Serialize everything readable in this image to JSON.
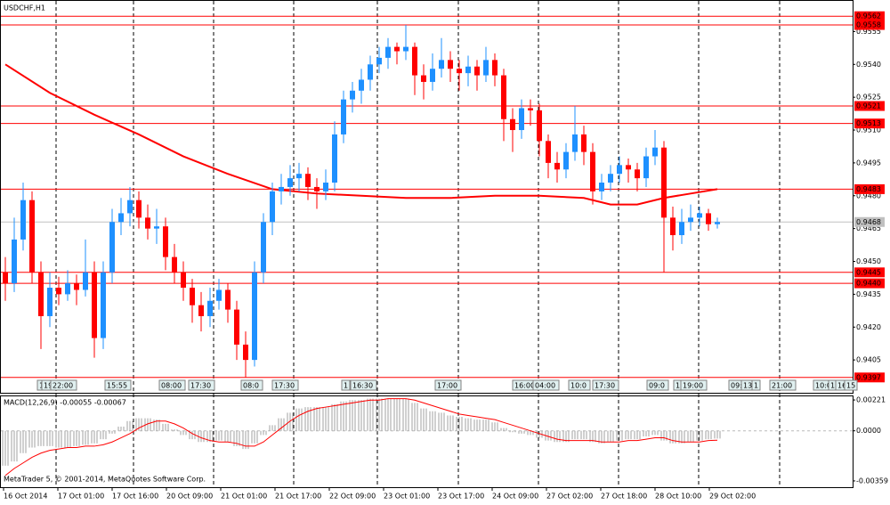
{
  "chart_data": [
    {
      "type": "candlestick",
      "title": "USDCHF,H1",
      "up_color": "#1e90ff",
      "down_color": "#ff0000",
      "ylim": [
        0.939,
        0.9569
      ],
      "yticks": [
        {
          "value": 0.9555,
          "label": "0.9555"
        },
        {
          "value": 0.954,
          "label": "0.9540"
        },
        {
          "value": 0.9525,
          "label": "0.9525"
        },
        {
          "value": 0.951,
          "label": "0.9510"
        },
        {
          "value": 0.9495,
          "label": "0.9495"
        },
        {
          "value": 0.948,
          "label": "0.9480"
        },
        {
          "value": 0.9465,
          "label": "0.9465"
        },
        {
          "value": 0.945,
          "label": "0.9450"
        },
        {
          "value": 0.9435,
          "label": "0.9435"
        },
        {
          "value": 0.942,
          "label": "0.9420"
        },
        {
          "value": 0.9405,
          "label": "0.9405"
        }
      ],
      "levels": [
        {
          "value": 0.9562,
          "label": "0.9562"
        },
        {
          "value": 0.9558,
          "label": "0.9558"
        },
        {
          "value": 0.9521,
          "label": "0.9521"
        },
        {
          "value": 0.9513,
          "label": "0.9513"
        },
        {
          "value": 0.9483,
          "label": "0.9483"
        },
        {
          "value": 0.9445,
          "label": "0.9445"
        },
        {
          "value": 0.944,
          "label": "0.9440"
        },
        {
          "value": 0.9397,
          "label": "0.9397"
        }
      ],
      "level_color": "#ff0000",
      "current": {
        "value": 0.9468,
        "label": "0.9468"
      },
      "current_color": "#c0c0c0",
      "ohlc": [
        [
          0.9445,
          0.9452,
          0.9432,
          0.944
        ],
        [
          0.944,
          0.947,
          0.9436,
          0.946
        ],
        [
          0.946,
          0.9486,
          0.9455,
          0.9478
        ],
        [
          0.9478,
          0.9482,
          0.944,
          0.9445
        ],
        [
          0.9445,
          0.945,
          0.941,
          0.9425
        ],
        [
          0.9425,
          0.9445,
          0.942,
          0.9438
        ],
        [
          0.9438,
          0.9443,
          0.943,
          0.9435
        ],
        [
          0.9435,
          0.9446,
          0.9432,
          0.944
        ],
        [
          0.944,
          0.9444,
          0.943,
          0.9437
        ],
        [
          0.9437,
          0.946,
          0.9434,
          0.9445
        ],
        [
          0.9445,
          0.945,
          0.9406,
          0.9415
        ],
        [
          0.9415,
          0.945,
          0.941,
          0.9445
        ],
        [
          0.9445,
          0.9474,
          0.944,
          0.9468
        ],
        [
          0.9468,
          0.9479,
          0.9462,
          0.9472
        ],
        [
          0.9472,
          0.9484,
          0.9466,
          0.9478
        ],
        [
          0.9478,
          0.9482,
          0.9465,
          0.947
        ],
        [
          0.947,
          0.9476,
          0.946,
          0.9465
        ],
        [
          0.9465,
          0.9474,
          0.9458,
          0.9466
        ],
        [
          0.9466,
          0.947,
          0.9446,
          0.9452
        ],
        [
          0.9452,
          0.9458,
          0.944,
          0.9445
        ],
        [
          0.9445,
          0.945,
          0.9432,
          0.9438
        ],
        [
          0.9438,
          0.9442,
          0.9422,
          0.943
        ],
        [
          0.943,
          0.9436,
          0.9418,
          0.9425
        ],
        [
          0.9425,
          0.9438,
          0.942,
          0.9432
        ],
        [
          0.9432,
          0.9442,
          0.9428,
          0.9437
        ],
        [
          0.9437,
          0.944,
          0.9422,
          0.9428
        ],
        [
          0.9428,
          0.9432,
          0.9405,
          0.9412
        ],
        [
          0.9412,
          0.9418,
          0.9397,
          0.9405
        ],
        [
          0.9405,
          0.945,
          0.9402,
          0.9445
        ],
        [
          0.9445,
          0.9472,
          0.944,
          0.9468
        ],
        [
          0.9468,
          0.9486,
          0.9462,
          0.9482
        ],
        [
          0.9482,
          0.949,
          0.9476,
          0.9484
        ],
        [
          0.9484,
          0.9494,
          0.948,
          0.9488
        ],
        [
          0.9488,
          0.9495,
          0.9482,
          0.949
        ],
        [
          0.949,
          0.9493,
          0.9478,
          0.9484
        ],
        [
          0.9484,
          0.9488,
          0.9474,
          0.9482
        ],
        [
          0.9482,
          0.9492,
          0.9478,
          0.9486
        ],
        [
          0.9486,
          0.9514,
          0.9482,
          0.9508
        ],
        [
          0.9508,
          0.9528,
          0.9504,
          0.9524
        ],
        [
          0.9524,
          0.9532,
          0.9518,
          0.9528
        ],
        [
          0.9528,
          0.9538,
          0.9522,
          0.9533
        ],
        [
          0.9533,
          0.9544,
          0.9528,
          0.954
        ],
        [
          0.954,
          0.9548,
          0.9536,
          0.9543
        ],
        [
          0.9543,
          0.9552,
          0.9538,
          0.9548
        ],
        [
          0.9548,
          0.955,
          0.954,
          0.9546
        ],
        [
          0.9546,
          0.9558,
          0.9542,
          0.9548
        ],
        [
          0.9548,
          0.955,
          0.9526,
          0.9535
        ],
        [
          0.9535,
          0.954,
          0.9524,
          0.9532
        ],
        [
          0.9532,
          0.9545,
          0.9528,
          0.9538
        ],
        [
          0.9538,
          0.9552,
          0.9534,
          0.9542
        ],
        [
          0.9542,
          0.9546,
          0.9532,
          0.9538
        ],
        [
          0.9538,
          0.9542,
          0.9528,
          0.9536
        ],
        [
          0.9536,
          0.9544,
          0.953,
          0.9539
        ],
        [
          0.9539,
          0.9542,
          0.9528,
          0.9535
        ],
        [
          0.9535,
          0.9548,
          0.9532,
          0.9542
        ],
        [
          0.9542,
          0.9545,
          0.953,
          0.9535
        ],
        [
          0.9535,
          0.9538,
          0.9505,
          0.9515
        ],
        [
          0.9515,
          0.952,
          0.95,
          0.951
        ],
        [
          0.951,
          0.9524,
          0.9506,
          0.952
        ],
        [
          0.952,
          0.9524,
          0.9512,
          0.9519
        ],
        [
          0.9519,
          0.9522,
          0.9498,
          0.9505
        ],
        [
          0.9505,
          0.9508,
          0.9488,
          0.9495
        ],
        [
          0.9495,
          0.95,
          0.9486,
          0.9492
        ],
        [
          0.9492,
          0.9504,
          0.9488,
          0.95
        ],
        [
          0.95,
          0.9521,
          0.9496,
          0.9508
        ],
        [
          0.9508,
          0.9512,
          0.9494,
          0.95
        ],
        [
          0.95,
          0.9504,
          0.9476,
          0.9482
        ],
        [
          0.9482,
          0.949,
          0.9478,
          0.9486
        ],
        [
          0.9486,
          0.9494,
          0.9482,
          0.949
        ],
        [
          0.949,
          0.9498,
          0.9486,
          0.9494
        ],
        [
          0.9494,
          0.9497,
          0.9486,
          0.9492
        ],
        [
          0.9492,
          0.9495,
          0.9482,
          0.9488
        ],
        [
          0.9488,
          0.9502,
          0.9484,
          0.9498
        ],
        [
          0.9498,
          0.951,
          0.9494,
          0.9502
        ],
        [
          0.9502,
          0.9505,
          0.9445,
          0.947
        ],
        [
          0.947,
          0.9475,
          0.9455,
          0.9462
        ],
        [
          0.9462,
          0.9474,
          0.9458,
          0.9468
        ],
        [
          0.9468,
          0.9476,
          0.9464,
          0.947
        ],
        [
          0.947,
          0.9475,
          0.9466,
          0.9472
        ],
        [
          0.9472,
          0.9474,
          0.9464,
          0.9467
        ],
        [
          0.9467,
          0.947,
          0.9465,
          0.9468
        ]
      ],
      "ma": {
        "color": "#ff0000",
        "x": [
          0,
          5,
          10,
          15,
          20,
          25,
          30,
          35,
          40,
          45,
          50,
          55,
          60,
          65,
          68,
          71,
          74,
          77,
          80
        ],
        "values": [
          0.954,
          0.9527,
          0.9517,
          0.9508,
          0.9498,
          0.949,
          0.9483,
          0.9481,
          0.948,
          0.9479,
          0.9479,
          0.948,
          0.948,
          0.9479,
          0.9476,
          0.9476,
          0.9479,
          0.9481,
          0.9483
        ]
      },
      "time_labels": [
        "16 Oct 2014",
        "17 Oct 01:00",
        "17 Oct 16:00",
        "20 Oct 09:00",
        "21 Oct 01:00",
        "21 Oct 17:00",
        "22 Oct 09:00",
        "23 Oct 01:00",
        "23 Oct 17:00",
        "24 Oct 09:00",
        "27 Oct 02:00",
        "27 Oct 18:00",
        "28 Oct 10:00",
        "29 Oct 02:00"
      ],
      "events": [
        "1",
        "19",
        "22:00",
        "15:55",
        "08:00",
        "17:30",
        "08:0",
        "17:30",
        "1",
        "16:30",
        "17:00",
        "16:00",
        "04:00",
        "10:0",
        "17:30",
        "09:0",
        "1",
        "19:00",
        "09:0",
        "13",
        "1",
        "21:00",
        "10:0",
        "1",
        "16",
        "15"
      ]
    },
    {
      "type": "macd",
      "title": "MACD(12,26,9) -0.00055 -0.00067",
      "copyright": "MetaTrader 5, © 2001-2014, MetaQuotes Software Corp.",
      "ylim": [
        -0.00404,
        0.00247
      ],
      "yticks": [
        0.00221,
        {
          "value": 0,
          "label": "0.0000"
        },
        -0.00359
      ],
      "histogram": {
        "color": "#a0a0a0",
        "values": [
          -0.0025,
          -0.0022,
          -0.0016,
          -0.0012,
          -0.0011,
          -0.0011,
          -0.0012,
          -0.0012,
          -0.0011,
          -0.001,
          -0.0009,
          -0.0006,
          -0.0002,
          0.0003,
          0.0007,
          0.0009,
          0.0009,
          0.0008,
          0.0005,
          0.0001,
          -0.0003,
          -0.0006,
          -0.0008,
          -0.0008,
          -0.0007,
          -0.0008,
          -0.0011,
          -0.0013,
          -0.0009,
          -0.0003,
          0.0004,
          0.0009,
          0.0013,
          0.0016,
          0.0017,
          0.0017,
          0.0017,
          0.0019,
          0.0021,
          0.0022,
          0.0022,
          0.0023,
          0.0023,
          0.0023,
          0.0023,
          0.0023,
          0.002,
          0.0016,
          0.0014,
          0.0013,
          0.0011,
          0.001,
          0.0009,
          0.0008,
          0.0008,
          0.0006,
          0.0002,
          -0.0001,
          -0.0002,
          -0.0003,
          -0.0005,
          -0.0007,
          -0.0008,
          -0.0008,
          -0.0006,
          -0.0006,
          -0.0008,
          -0.0009,
          -0.0008,
          -0.0007,
          -0.0006,
          -0.0006,
          -0.0004,
          -0.0003,
          -0.0007,
          -0.0009,
          -0.0009,
          -0.0008,
          -0.0007,
          -0.0006,
          -0.00055
        ]
      },
      "signal": {
        "color": "#ff0000",
        "values": [
          -0.0032,
          -0.0027,
          -0.0023,
          -0.0019,
          -0.0016,
          -0.0014,
          -0.0013,
          -0.0012,
          -0.0012,
          -0.0011,
          -0.0011,
          -0.001,
          -0.0008,
          -0.0005,
          -0.0002,
          0.0002,
          0.0005,
          0.0007,
          0.0007,
          0.0005,
          0.0002,
          -0.0002,
          -0.0005,
          -0.0007,
          -0.0008,
          -0.0008,
          -0.0009,
          -0.0011,
          -0.0011,
          -0.0008,
          -0.0003,
          0.0002,
          0.0007,
          0.0011,
          0.0014,
          0.0016,
          0.0017,
          0.0018,
          0.0019,
          0.002,
          0.0021,
          0.0022,
          0.0022,
          0.0023,
          0.0023,
          0.0023,
          0.0022,
          0.002,
          0.0018,
          0.0016,
          0.0014,
          0.0012,
          0.0011,
          0.001,
          0.0009,
          0.0008,
          0.0006,
          0.0004,
          0.0002,
          0.0,
          -0.0002,
          -0.0004,
          -0.0006,
          -0.0007,
          -0.0007,
          -0.0007,
          -0.0007,
          -0.0008,
          -0.0008,
          -0.0008,
          -0.0007,
          -0.0007,
          -0.0006,
          -0.0005,
          -0.0005,
          -0.0007,
          -0.0008,
          -0.0008,
          -0.0008,
          -0.0007,
          -0.00067
        ]
      }
    }
  ]
}
